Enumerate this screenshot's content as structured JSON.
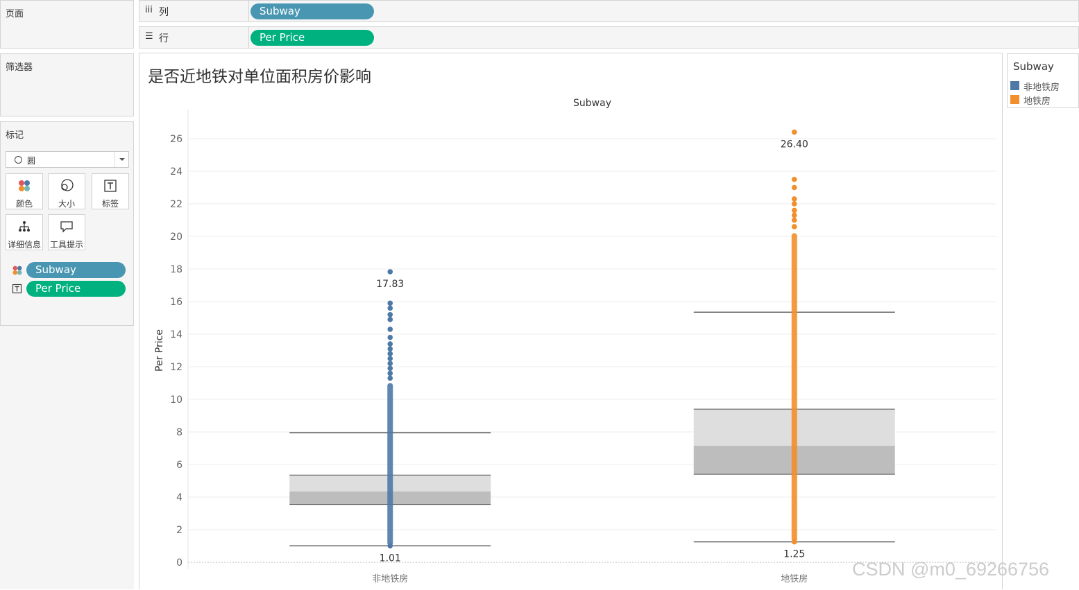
{
  "panels": {
    "pages_title": "页面",
    "filters_title": "筛选器",
    "marks_title": "标记"
  },
  "marks": {
    "mark_type": "圆",
    "buttons": [
      {
        "label": "颜色",
        "icon": "color-dots-icon"
      },
      {
        "label": "大小",
        "icon": "size-circles-icon"
      },
      {
        "label": "标签",
        "icon": "text-label-icon"
      },
      {
        "label": "详细信息",
        "icon": "detail-tree-icon"
      },
      {
        "label": "工具提示",
        "icon": "tooltip-bubble-icon"
      }
    ],
    "fields": [
      {
        "label": "Subway",
        "icon": "color-dots-icon",
        "color": "#4996b2"
      },
      {
        "label": "Per Price",
        "icon": "text-label-icon",
        "color": "#00b180"
      }
    ]
  },
  "shelves": {
    "columns_label": "列",
    "columns_icon": "iii",
    "columns_pill": "Subway",
    "rows_label": "行",
    "rows_icon": "☰",
    "rows_pill": "Per Price"
  },
  "legend": {
    "title": "Subway",
    "items": [
      {
        "label": "非地铁房",
        "color": "#4e79a7"
      },
      {
        "label": "地铁房",
        "color": "#f28e2b"
      }
    ]
  },
  "watermark": "CSDN @m0_69266756",
  "chart_data": {
    "type": "scatter",
    "title": "是否近地铁对单位面积房价影响",
    "header": "Subway",
    "xlabel": "",
    "ylabel": "Per Price",
    "categories": [
      "非地铁房",
      "地铁房"
    ],
    "ylim": [
      0,
      27
    ],
    "yticks": [
      0,
      2,
      4,
      6,
      8,
      10,
      12,
      14,
      16,
      18,
      20,
      22,
      24,
      26
    ],
    "grid": true,
    "legend_position": "right",
    "series": [
      {
        "name": "非地铁房",
        "color": "#4e79a7",
        "min": 1.01,
        "max": 17.83,
        "dense_range": [
          1.01,
          11.0
        ],
        "outliers": [
          11.3,
          11.6,
          11.9,
          12.2,
          12.5,
          12.8,
          13.1,
          13.4,
          13.8,
          14.3,
          14.9,
          15.2,
          15.6,
          15.9,
          17.83
        ],
        "box": {
          "whisker_low": 1.01,
          "q1": 3.55,
          "median": 4.35,
          "q3": 5.35,
          "whisker_high": 7.95
        },
        "labels": {
          "max": "17.83",
          "min": "1.01"
        }
      },
      {
        "name": "地铁房",
        "color": "#f28e2b",
        "min": 1.25,
        "max": 26.4,
        "dense_range": [
          1.25,
          20.2
        ],
        "outliers": [
          20.6,
          21.0,
          21.3,
          21.6,
          22.0,
          22.3,
          23.0,
          23.5,
          26.4
        ],
        "box": {
          "whisker_low": 1.25,
          "q1": 5.4,
          "median": 7.15,
          "q3": 9.4,
          "whisker_high": 15.35
        },
        "labels": {
          "max": "26.40",
          "min": "1.25"
        }
      }
    ]
  }
}
